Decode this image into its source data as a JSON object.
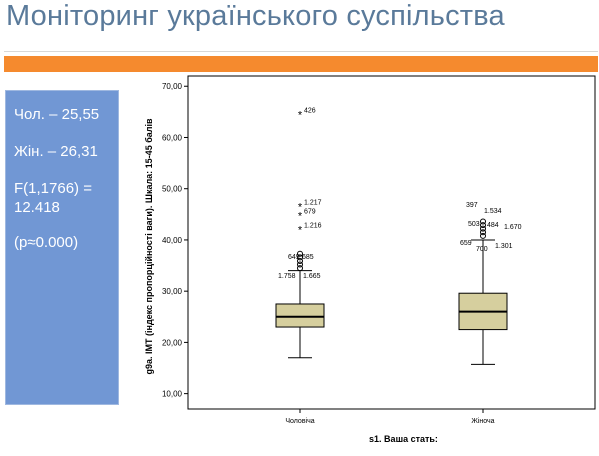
{
  "slide": {
    "title": "Моніторинг українського суспільства"
  },
  "stats_panel": {
    "lines": [
      "Чол. – 25,55",
      "Жін. – 26,31",
      "F(1,1766) = 12.418",
      "(p≈0.000)"
    ]
  },
  "colors": {
    "accent": "#f58a2e",
    "panel": "#7197d4",
    "box_fill": "#d6cf9e",
    "title": "#5a7a9a"
  },
  "chart_data": {
    "type": "boxplot",
    "xlabel": "s1. Ваша стать:",
    "ylabel": "g9a. ІМТ (індекс пропорційності ваги). Шкала: 15-45 балів",
    "ylim": [
      7,
      72
    ],
    "yticks": [
      10,
      20,
      30,
      40,
      50,
      60,
      70
    ],
    "ytick_labels": [
      "10,00",
      "20,00",
      "30,00",
      "40,00",
      "50,00",
      "60,00",
      "70,00"
    ],
    "categories": [
      "Чоловіча",
      "Жіноча"
    ],
    "series": [
      {
        "category": "Чоловіча",
        "whisker_low": 17,
        "q1": 23,
        "median": 25,
        "q3": 27.5,
        "whisker_high": 34,
        "outlier_circles": [
          34.5,
          35.2,
          35.9,
          36.6,
          37.3
        ],
        "extremes": [
          {
            "value": 64.5,
            "label": "426"
          },
          {
            "value": 46.5,
            "label": "1.217"
          },
          {
            "value": 44.8,
            "label": "679"
          },
          {
            "value": 42.0,
            "label": "1.216"
          }
        ],
        "outlier_labels": [
          "649",
          "685",
          "1.758",
          "1.665"
        ]
      },
      {
        "category": "Жіноча",
        "whisker_low": 15.7,
        "q1": 22.5,
        "median": 26,
        "q3": 29.6,
        "whisker_high": 40,
        "outlier_circles": [
          40.8,
          41.5,
          42.2,
          42.9,
          43.6
        ],
        "extremes": [],
        "outlier_labels": [
          "397",
          "1.534",
          "503",
          "484",
          "1.670",
          "659",
          "700",
          "1.301"
        ]
      }
    ]
  }
}
